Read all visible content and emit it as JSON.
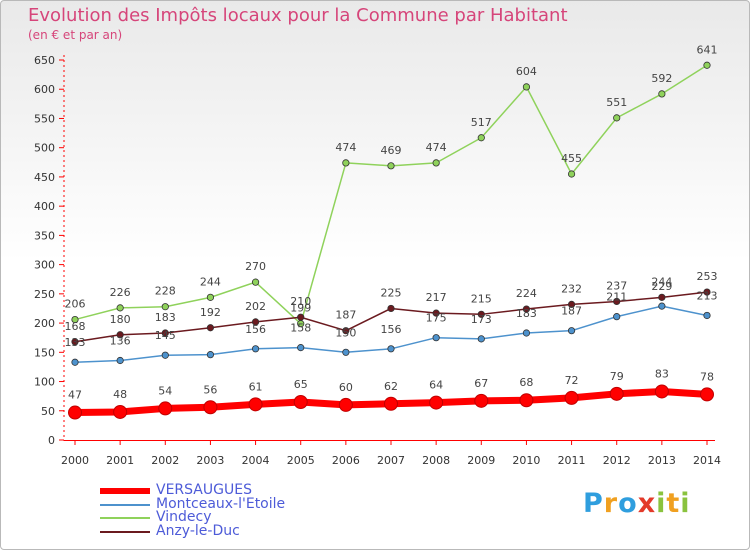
{
  "header": {
    "title": "Evolution des Impôts locaux pour la Commune par Habitant",
    "subtitle": "(en € et par an)"
  },
  "brand": {
    "letters": [
      "P",
      "r",
      "o",
      "x",
      "i",
      "t",
      "i"
    ],
    "colors": [
      "#2f9ede",
      "#f0a020",
      "#2f9ede",
      "#e33a2a",
      "#8ac33e",
      "#f0a020",
      "#8ac33e"
    ]
  },
  "chart_data": {
    "type": "line",
    "x": [
      "2000",
      "2001",
      "2002",
      "2003",
      "2004",
      "2005",
      "2006",
      "2007",
      "2008",
      "2009",
      "2010",
      "2011",
      "2012",
      "2013",
      "2014"
    ],
    "ylim": [
      0,
      650
    ],
    "yticks": [
      "0",
      "50",
      "100",
      "150",
      "200",
      "250",
      "300",
      "350",
      "400",
      "450",
      "500",
      "550",
      "600",
      "650"
    ],
    "grid": false,
    "series": [
      {
        "name": "VERSAUGUES",
        "color": "#ff0000",
        "values": [
          47,
          48,
          54,
          56,
          61,
          65,
          60,
          62,
          64,
          67,
          68,
          72,
          79,
          83,
          78
        ]
      },
      {
        "name": "Montceaux-l'Etoile",
        "color": "#4d92cd",
        "values": [
          133,
          136,
          145,
          146,
          156,
          158,
          150,
          156,
          175,
          173,
          183,
          187,
          211,
          229,
          213
        ]
      },
      {
        "name": "Vindecy",
        "color": "#8fd25b",
        "values": [
          206,
          226,
          228,
          244,
          270,
          199,
          474,
          469,
          474,
          517,
          604,
          455,
          551,
          592,
          641
        ]
      },
      {
        "name": "Anzy-le-Duc",
        "color": "#6b1a1f",
        "values": [
          168,
          180,
          183,
          192,
          202,
          210,
          187,
          225,
          217,
          215,
          224,
          232,
          237,
          244,
          253
        ]
      }
    ],
    "data_labels": [
      [
        "47",
        "48",
        "54",
        "56",
        "61",
        "65",
        "60",
        "62",
        "64",
        "67",
        "68",
        "72",
        "79",
        "83",
        "78"
      ],
      [
        "133",
        "136",
        "145",
        "",
        "156",
        "158",
        "150",
        "156",
        "175",
        "173",
        "183",
        "187",
        "211",
        "229",
        "213"
      ],
      [
        "206",
        "226",
        "228",
        "244",
        "270",
        "199",
        "474",
        "469",
        "474",
        "517",
        "604",
        "455",
        "551",
        "592",
        "641"
      ],
      [
        "168",
        "180",
        "183",
        "192",
        "202",
        "210",
        "187",
        "225",
        "217",
        "215",
        "224",
        "232",
        "237",
        "244",
        "253"
      ]
    ]
  }
}
